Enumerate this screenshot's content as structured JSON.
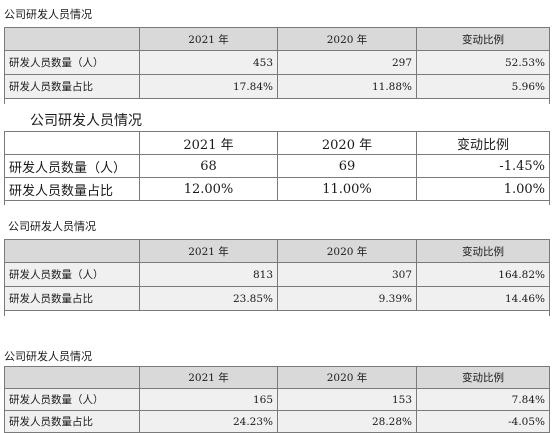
{
  "tables": [
    {
      "title": "公司研发人员情况",
      "headers": [
        "",
        "2021 年",
        "2020 年",
        "变动比例"
      ],
      "rows": [
        [
          "研发人员数量（人）",
          "453",
          "297",
          "52.53%"
        ],
        [
          "研发人员数量占比",
          "17.84%",
          "11.88%",
          "5.96%"
        ]
      ]
    },
    {
      "title": "公司研发人员情况",
      "headers": [
        "",
        "2021 年",
        "2020 年",
        "变动比例"
      ],
      "rows": [
        [
          "研发人员数量（人）",
          "68",
          "69",
          "-1.45%"
        ],
        [
          "研发人员数量占比",
          "12.00%",
          "11.00%",
          "1.00%"
        ]
      ]
    },
    {
      "title": "公司研发人员情况",
      "headers": [
        "",
        "2021 年",
        "2020 年",
        "变动比例"
      ],
      "rows": [
        [
          "研发人员数量（人）",
          "813",
          "307",
          "164.82%"
        ],
        [
          "研发人员数量占比",
          "23.85%",
          "9.39%",
          "14.46%"
        ]
      ]
    },
    {
      "title": "公司研发人员情况",
      "headers": [
        "",
        "2021 年",
        "2020 年",
        "变动比例"
      ],
      "rows": [
        [
          "研发人员数量（人）",
          "165",
          "153",
          "7.84%"
        ],
        [
          "研发人员数量占比",
          "24.23%",
          "28.28%",
          "-4.05%"
        ]
      ]
    }
  ]
}
